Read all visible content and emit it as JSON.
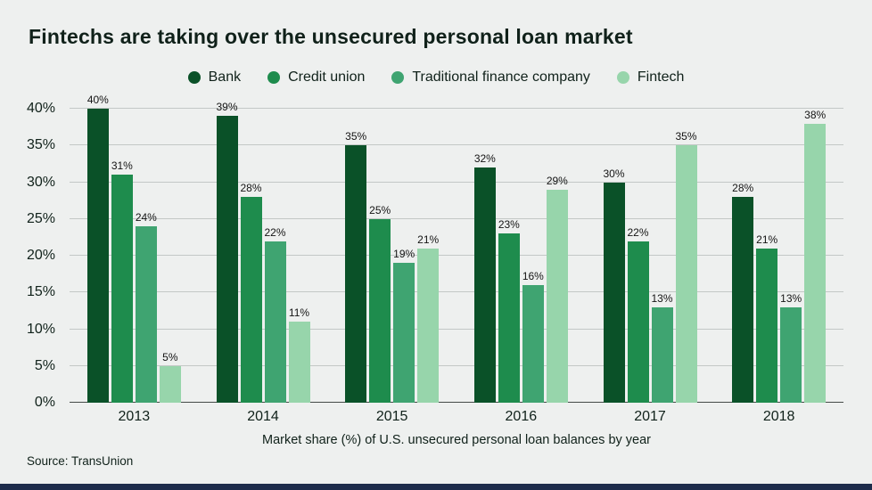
{
  "page": {
    "title": "Fintechs are taking over the unsecured personal loan market",
    "caption": "Market share (%) of U.S. unsecured personal loan balances by year",
    "source": "Source: TransUnion"
  },
  "chart_data": {
    "type": "bar",
    "title": "Fintechs are taking over the unsecured personal loan market",
    "xlabel": "Market share (%) of U.S. unsecured personal loan balances by year",
    "ylabel": "",
    "ylim": [
      0,
      40
    ],
    "ytick_step": 5,
    "ytick_suffix": "%",
    "grid": true,
    "legend_position": "top",
    "value_label_suffix": "%",
    "categories": [
      "2013",
      "2014",
      "2015",
      "2016",
      "2017",
      "2018"
    ],
    "series": [
      {
        "name": "Bank",
        "color": "#0a5128",
        "values": [
          40,
          39,
          35,
          32,
          30,
          28
        ]
      },
      {
        "name": "Credit union",
        "color": "#1e8c4d",
        "values": [
          31,
          28,
          25,
          23,
          22,
          21
        ]
      },
      {
        "name": "Traditional finance company",
        "color": "#3fa471",
        "values": [
          24,
          22,
          19,
          16,
          13,
          13
        ]
      },
      {
        "name": "Fintech",
        "color": "#97d5ab",
        "values": [
          5,
          11,
          21,
          29,
          35,
          38
        ]
      }
    ]
  },
  "colors": {
    "background": "#eef0ef",
    "grid": "#c3c8c6",
    "axis": "#454a48",
    "text": "#10211a",
    "footer_bar": "#1d2c4b"
  }
}
